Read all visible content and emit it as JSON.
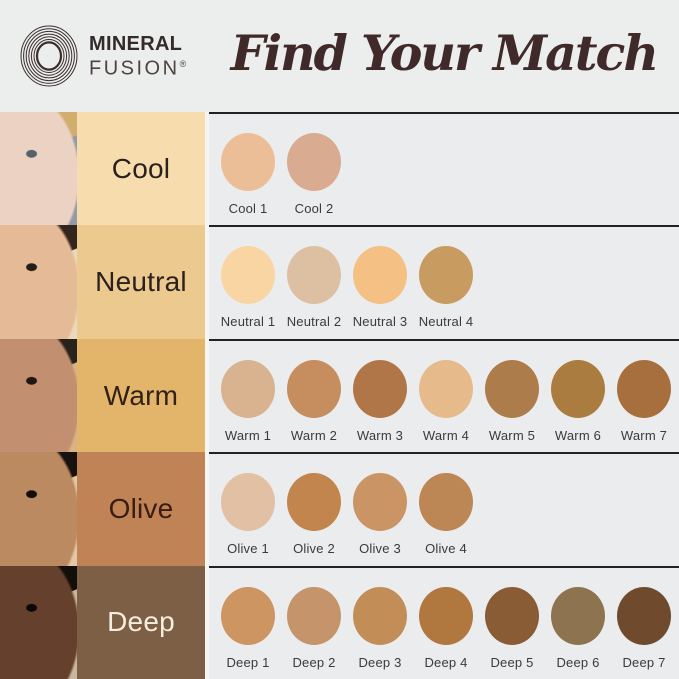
{
  "brand": {
    "line1": "MINERAL",
    "line2": "FUSION",
    "registered": "®",
    "logo_color": "#3b2f2d"
  },
  "header": {
    "title": "Find Your Match",
    "title_color": "#402a29",
    "background": "#eceded"
  },
  "panel": {
    "background": "#ebeced",
    "divider_color": "#222220",
    "swatch_label_color": "#3a3a3a"
  },
  "rows": [
    {
      "key": "cool",
      "label": "Cool",
      "label_bg": "#f7dcae",
      "label_color": "#2b211c",
      "face": {
        "skin": "#ecd2c3",
        "hair": "#d2ae6e",
        "backdrop": "#929ba3",
        "eye": "#55626c"
      },
      "swatches": [
        {
          "name": "Cool 1",
          "color": "#ecbe97"
        },
        {
          "name": "Cool 2",
          "color": "#d9ac92"
        }
      ]
    },
    {
      "key": "neutral",
      "label": "Neutral",
      "label_bg": "#ecc98f",
      "label_color": "#2b211c",
      "face": {
        "skin": "#e4bb96",
        "hair": "#35261d",
        "backdrop": "#ecd9bc",
        "eye": "#241c16"
      },
      "swatches": [
        {
          "name": "Neutral 1",
          "color": "#f8d5a2"
        },
        {
          "name": "Neutral 2",
          "color": "#ddc0a2"
        },
        {
          "name": "Neutral 3",
          "color": "#f4c083"
        },
        {
          "name": "Neutral 4",
          "color": "#c89b61"
        }
      ]
    },
    {
      "key": "warm",
      "label": "Warm",
      "label_bg": "#e2b56b",
      "label_color": "#332016",
      "face": {
        "skin": "#c29070",
        "hair": "#29211b",
        "backdrop": "#d9b285",
        "eye": "#1f1812"
      },
      "swatches": [
        {
          "name": "Warm 1",
          "color": "#d9b28f"
        },
        {
          "name": "Warm 2",
          "color": "#c68d5e"
        },
        {
          "name": "Warm 3",
          "color": "#b07648"
        },
        {
          "name": "Warm 4",
          "color": "#e6ba8a"
        },
        {
          "name": "Warm 5",
          "color": "#ad7c4b"
        },
        {
          "name": "Warm 6",
          "color": "#ab7c3f"
        },
        {
          "name": "Warm 7",
          "color": "#a76f3d"
        }
      ]
    },
    {
      "key": "olive",
      "label": "Olive",
      "label_bg": "#c08355",
      "label_color": "#3a1d12",
      "face": {
        "skin": "#bc8a60",
        "hair": "#17120e",
        "backdrop": "#e4c7a6",
        "eye": "#120d0a"
      },
      "swatches": [
        {
          "name": "Olive 1",
          "color": "#e2c0a4"
        },
        {
          "name": "Olive 2",
          "color": "#c2854e"
        },
        {
          "name": "Olive 3",
          "color": "#ca9465"
        },
        {
          "name": "Olive 4",
          "color": "#bd8655"
        }
      ]
    },
    {
      "key": "deep",
      "label": "Deep",
      "label_bg": "#7d5f45",
      "label_color": "#f5edde",
      "face": {
        "skin": "#65412d",
        "hair": "#140e0b",
        "backdrop": "#cab69e",
        "eye": "#0c0807"
      },
      "swatches": [
        {
          "name": "Deep 1",
          "color": "#cc9561"
        },
        {
          "name": "Deep 2",
          "color": "#c6946a"
        },
        {
          "name": "Deep 3",
          "color": "#c28d57"
        },
        {
          "name": "Deep 4",
          "color": "#b0773f"
        },
        {
          "name": "Deep 5",
          "color": "#8a5c35"
        },
        {
          "name": "Deep 6",
          "color": "#8d7350"
        },
        {
          "name": "Deep 7",
          "color": "#6f4a2c"
        }
      ]
    }
  ]
}
